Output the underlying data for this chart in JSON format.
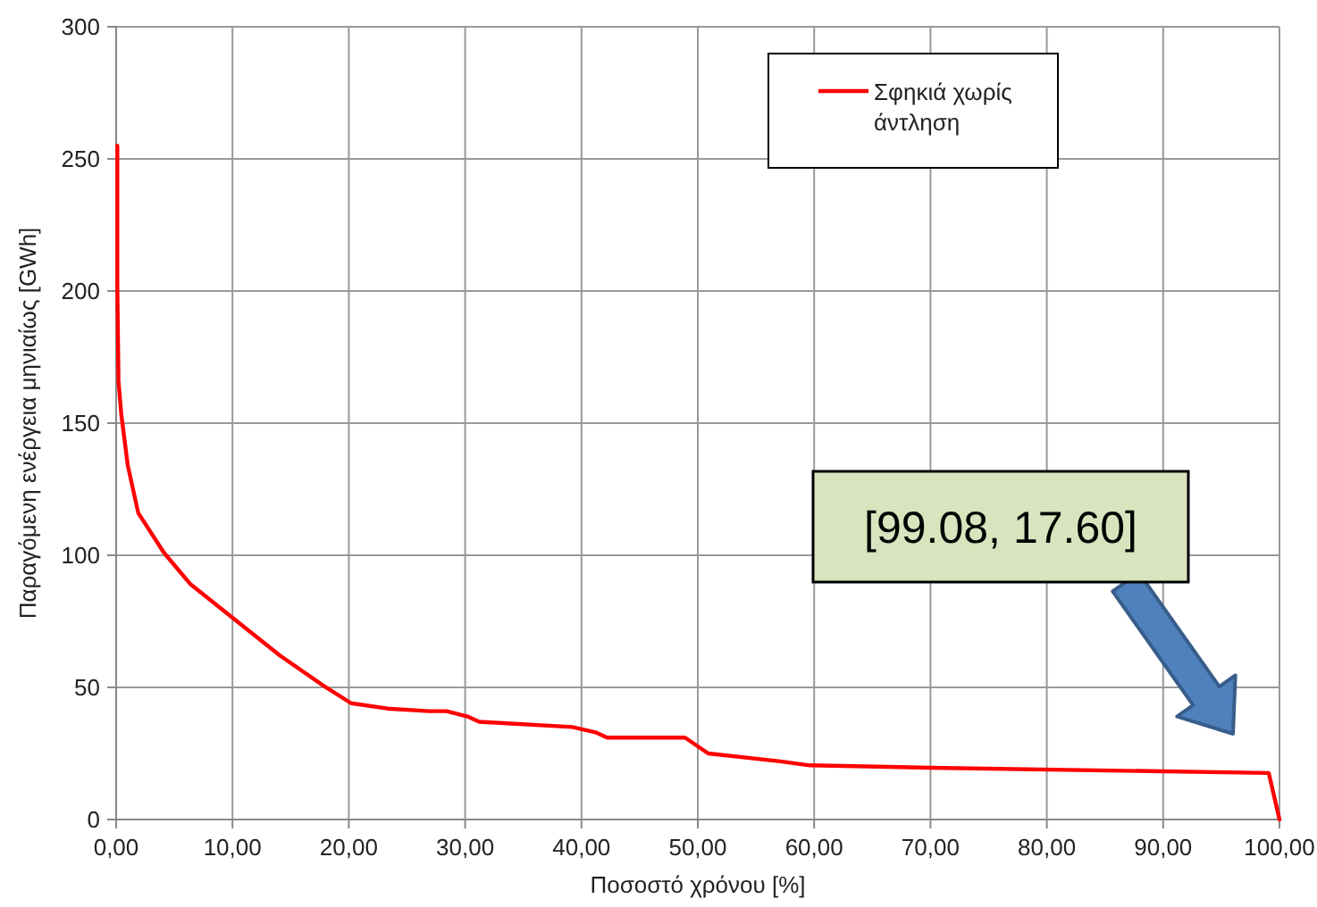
{
  "chart_data": {
    "type": "line",
    "xlabel": "Ποσοστό χρόνου [%]",
    "ylabel": "Παραγόμενη ενέργεια μηνιαίως  [GWh]",
    "xlim": [
      0,
      100
    ],
    "ylim": [
      0,
      300
    ],
    "xticks": [
      {
        "value": 0,
        "label": "0,00"
      },
      {
        "value": 10,
        "label": "10,00"
      },
      {
        "value": 20,
        "label": "20,00"
      },
      {
        "value": 30,
        "label": "30,00"
      },
      {
        "value": 40,
        "label": "40,00"
      },
      {
        "value": 50,
        "label": "50,00"
      },
      {
        "value": 60,
        "label": "60,00"
      },
      {
        "value": 70,
        "label": "70,00"
      },
      {
        "value": 80,
        "label": "80,00"
      },
      {
        "value": 90,
        "label": "90,00"
      },
      {
        "value": 100,
        "label": "100,00"
      }
    ],
    "yticks": [
      0,
      50,
      100,
      150,
      200,
      250,
      300
    ],
    "grid": true,
    "legend": "top right",
    "marker": "none",
    "line_style": "solid",
    "x": [
      0.1,
      0.1,
      0.2,
      0.45,
      1.0,
      1.9,
      4.1,
      6.4,
      10.1,
      14.1,
      17.7,
      20.2,
      23.3,
      26.9,
      28.4,
      30.2,
      31.2,
      39.2,
      41.2,
      42.2,
      48.9,
      50.9,
      57.1,
      59.6,
      69.9,
      99.08,
      100
    ],
    "series": [
      {
        "name": "Σφηκιά χωρίς άντληση",
        "color": "#ff0000",
        "values": [
          255,
          202,
          166,
          153,
          134,
          116,
          101,
          89,
          76,
          62,
          51,
          44,
          42,
          41,
          41,
          39,
          37,
          35,
          33,
          31,
          31,
          25,
          22,
          20.5,
          19.6,
          17.6,
          0
        ]
      }
    ],
    "annotations": [
      "[99.08, 17.60]"
    ]
  }
}
